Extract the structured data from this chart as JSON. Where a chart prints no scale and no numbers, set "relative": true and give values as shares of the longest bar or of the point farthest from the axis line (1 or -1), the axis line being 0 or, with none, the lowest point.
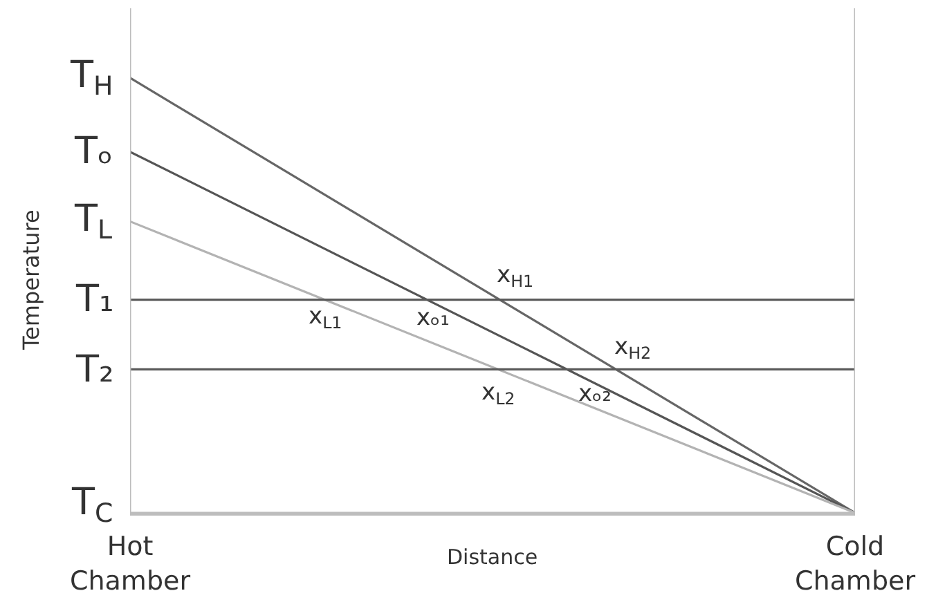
{
  "chart_data": {
    "type": "line",
    "relative": true,
    "xlabel": "Distance",
    "ylabel": "Temperature",
    "categories": [
      "Hot\nChamber",
      "Cold\nChamber"
    ],
    "series": [
      {
        "name": "T$_{H}$",
        "color": "#666666",
        "values": [
          1,
          0
        ]
      },
      {
        "name": "Tₒ",
        "color": "#555555",
        "values": [
          0.83,
          0
        ]
      },
      {
        "name": "T$_{L}$",
        "color": "#b3b3b3",
        "values": [
          0.67,
          0
        ]
      },
      {
        "name": "T₁",
        "color": "#5a5a5a",
        "values": [
          0.49,
          0.49
        ]
      },
      {
        "name": "T₂",
        "color": "#5a5a5a",
        "values": [
          0.33,
          0.33
        ]
      }
    ],
    "ref_lines": [
      {
        "axis": "y",
        "value": 0,
        "label": "T$_{C}$",
        "color": "#bdbdbd"
      },
      {
        "axis": "x",
        "value": "Hot\nChamber",
        "color": "#bdbdbd"
      },
      {
        "axis": "x",
        "value": "Cold\nChamber",
        "color": "#bdbdbd"
      }
    ],
    "annotations": [
      "x$_{H1}$",
      "x$_{L1}$",
      "xₒ₁",
      "x$_{H2}$",
      "x$_{L2}$",
      "xₒ₂"
    ]
  }
}
